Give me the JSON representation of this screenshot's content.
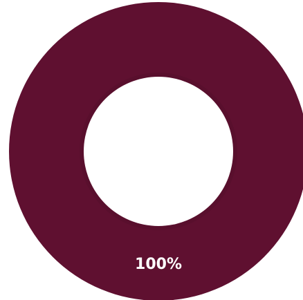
{
  "chart_data": {
    "type": "pie",
    "donut": true,
    "slices": [
      {
        "value": 100,
        "label": "100%",
        "color": "#5f1030"
      }
    ],
    "legend": "none",
    "title": ""
  }
}
